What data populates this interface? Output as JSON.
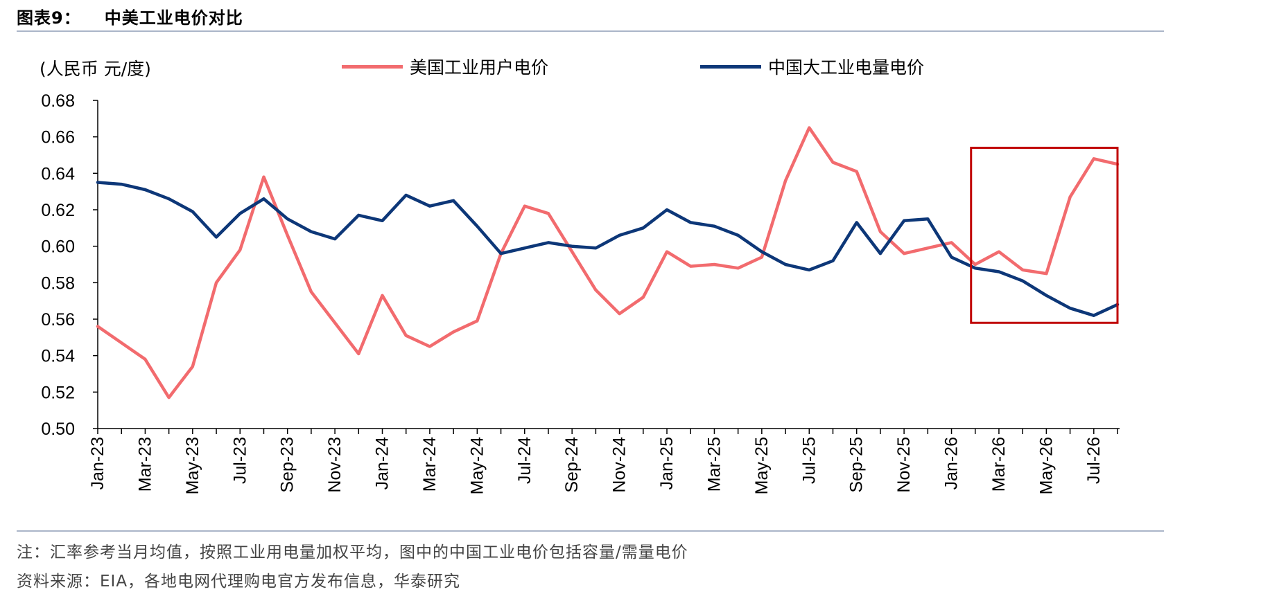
{
  "header": {
    "figure_number": "图表9：",
    "title": "中美工业电价对比"
  },
  "footer": {
    "note": "注：汇率参考当月均值，按照工业用电量加权平均，图中的中国工业电价包括容量/需量电价",
    "source": "资料来源：EIA，各地电网代理购电官方发布信息，华泰研究"
  },
  "chart_data": {
    "type": "line",
    "title": "中美工业电价对比",
    "ylabel": "(人民币 元/度)",
    "xlabel": "",
    "ylim": [
      0.5,
      0.68
    ],
    "yticks": [
      "0.68",
      "0.66",
      "0.64",
      "0.62",
      "0.60",
      "0.58",
      "0.56",
      "0.54",
      "0.52",
      "0.50"
    ],
    "ytick_values": [
      0.68,
      0.66,
      0.64,
      0.62,
      0.6,
      0.58,
      0.56,
      0.54,
      0.52,
      0.5
    ],
    "grid": false,
    "legend_placement": "top-center",
    "x": [
      "Jan-23",
      "Feb-23",
      "Mar-23",
      "Apr-23",
      "May-23",
      "Jun-23",
      "Jul-23",
      "Aug-23",
      "Sep-23",
      "Oct-23",
      "Nov-23",
      "Dec-23",
      "Jan-24",
      "Feb-24",
      "Mar-24",
      "Apr-24",
      "May-24",
      "Jun-24",
      "Jul-24",
      "Aug-24",
      "Sep-24",
      "Oct-24",
      "Nov-24",
      "Dec-24",
      "Jan-25",
      "Feb-25",
      "Mar-25",
      "Apr-25",
      "May-25",
      "Jun-25",
      "Jul-25",
      "Aug-25",
      "Sep-25",
      "Oct-25",
      "Nov-25",
      "Dec-25",
      "Jan-26",
      "Feb-26",
      "Mar-26",
      "Apr-26",
      "May-26",
      "Jun-26",
      "Jul-26",
      "Aug-26"
    ],
    "xtick_labels": [
      "Jan-23",
      "Mar-23",
      "May-23",
      "Jul-23",
      "Sep-23",
      "Nov-23",
      "Jan-24",
      "Mar-24",
      "May-24",
      "Jul-24",
      "Sep-24",
      "Nov-24",
      "Jan-25",
      "Mar-25",
      "May-25",
      "Jul-25",
      "Sep-25",
      "Nov-25",
      "Jan-26",
      "Mar-26",
      "May-26",
      "Jul-26"
    ],
    "series": [
      {
        "name": "美国工业用户电价",
        "color": "#f26b6e",
        "values": [
          0.556,
          0.547,
          0.538,
          0.517,
          0.534,
          0.58,
          0.598,
          0.638,
          0.606,
          0.575,
          0.558,
          0.541,
          0.573,
          0.551,
          0.545,
          0.553,
          0.559,
          0.596,
          0.622,
          0.618,
          0.597,
          0.576,
          0.563,
          0.572,
          0.597,
          0.589,
          0.59,
          0.588,
          0.594,
          0.636,
          0.665,
          0.646,
          0.641,
          0.608,
          0.596,
          0.599,
          0.602,
          0.59,
          0.597,
          0.587,
          0.585,
          0.627,
          0.648,
          0.645
        ]
      },
      {
        "name": "中国大工业电量电价",
        "color": "#0d3778",
        "values": [
          0.635,
          0.634,
          0.631,
          0.626,
          0.619,
          0.605,
          0.618,
          0.626,
          0.615,
          0.608,
          0.604,
          0.617,
          0.614,
          0.628,
          0.622,
          0.625,
          0.611,
          0.596,
          0.599,
          0.602,
          0.6,
          0.599,
          0.606,
          0.61,
          0.62,
          0.613,
          0.611,
          0.606,
          0.597,
          0.59,
          0.587,
          0.592,
          0.613,
          0.596,
          0.614,
          0.615,
          0.594,
          0.588,
          0.586,
          0.581,
          0.573,
          0.566,
          0.562,
          0.568
        ]
      }
    ],
    "highlight_box": {
      "color": "#c00000",
      "x_from": "Feb-26",
      "x_to": "Aug-26",
      "y_from": 0.558,
      "y_to": 0.654
    }
  }
}
